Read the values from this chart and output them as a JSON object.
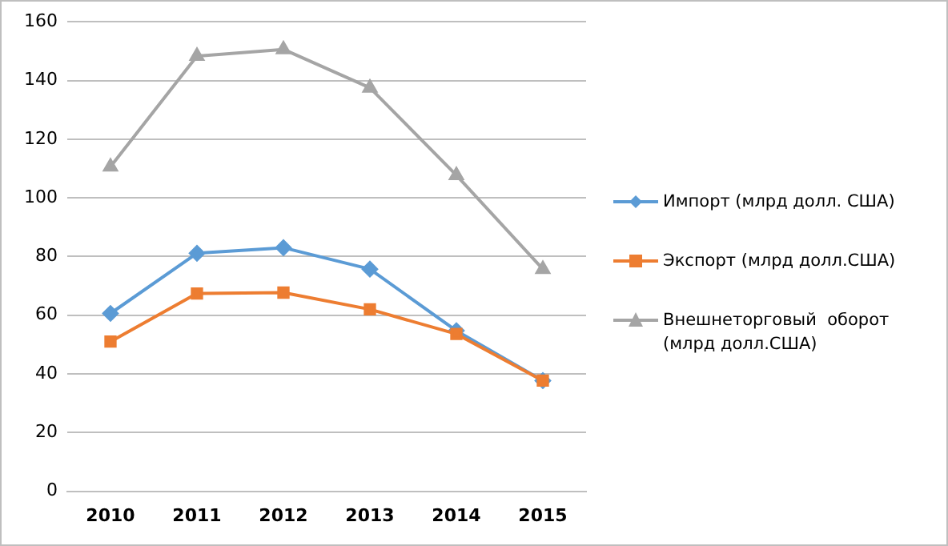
{
  "chart_data": {
    "type": "line",
    "categories": [
      "2010",
      "2011",
      "2012",
      "2013",
      "2014",
      "2015"
    ],
    "series": [
      {
        "name": "Импорт (млрд долл. США)",
        "color": "#5b9bd5",
        "marker": "diamond",
        "values": [
          60.6,
          81.1,
          83,
          75.7,
          54.7,
          37.7
        ]
      },
      {
        "name": "Экспорт (млрд долл.США)",
        "color": "#ed7d31",
        "marker": "square",
        "values": [
          51,
          67.4,
          67.7,
          62,
          53.6,
          37.7
        ]
      },
      {
        "name": "Внешнеторговый  оборот (млрд долл.США)",
        "color": "#a5a5a5",
        "marker": "triangle",
        "values": [
          110.6,
          148.3,
          150.6,
          137.5,
          107.7,
          75.7
        ]
      }
    ],
    "ylim": [
      0,
      160
    ],
    "yticks": [
      0,
      20,
      40,
      60,
      80,
      100,
      120,
      140,
      160
    ],
    "grid": "y",
    "legend": "right"
  }
}
